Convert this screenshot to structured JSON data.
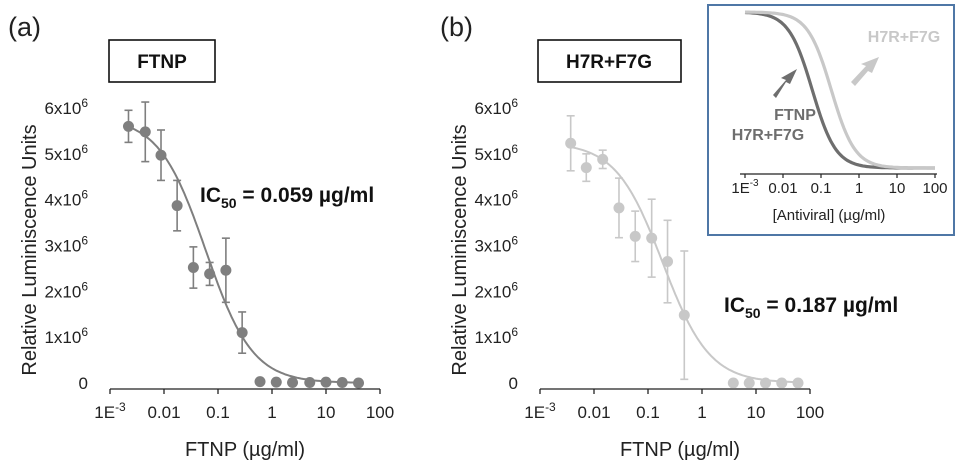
{
  "chart_data": [
    {
      "type": "scatter",
      "panel_label": "(a)",
      "box_label": "FTNP",
      "ic50_label": "IC",
      "ic50_sub": "50",
      "ic50_value": " = 0.059 µg/ml",
      "xlabel": "FTNP (µg/ml)",
      "ylabel": "Relative Luminiscence Units",
      "x_scale": "log",
      "xlim": [
        0.001,
        100
      ],
      "ylim": [
        0,
        6000000
      ],
      "x_ticks": [
        {
          "label": "1E",
          "sup": "-3"
        },
        {
          "label": "0.01",
          "sup": ""
        },
        {
          "label": "0.1",
          "sup": ""
        },
        {
          "label": "1",
          "sup": ""
        },
        {
          "label": "10",
          "sup": ""
        },
        {
          "label": "100",
          "sup": ""
        }
      ],
      "y_ticks": [
        {
          "label": "0",
          "sup": ""
        },
        {
          "label": "1x10",
          "sup": "6"
        },
        {
          "label": "2x10",
          "sup": "6"
        },
        {
          "label": "3x10",
          "sup": "6"
        },
        {
          "label": "4x10",
          "sup": "6"
        },
        {
          "label": "5x10",
          "sup": "6"
        },
        {
          "label": "6x10",
          "sup": "6"
        }
      ],
      "series": [
        {
          "color": "#7f7f7f",
          "points": [
            {
              "x": 0.0022,
              "y": 5600000,
              "err": 350000
            },
            {
              "x": 0.0045,
              "y": 5480000,
              "err": 650000
            },
            {
              "x": 0.0088,
              "y": 4970000,
              "err": 550000
            },
            {
              "x": 0.0175,
              "y": 3870000,
              "err": 550000
            },
            {
              "x": 0.035,
              "y": 2520000,
              "err": 450000
            },
            {
              "x": 0.07,
              "y": 2380000,
              "err": 250000
            },
            {
              "x": 0.14,
              "y": 2460000,
              "err": 700000
            },
            {
              "x": 0.28,
              "y": 1100000,
              "err": 450000
            },
            {
              "x": 0.6,
              "y": 30000,
              "err": 0
            },
            {
              "x": 1.2,
              "y": 20000,
              "err": 0
            },
            {
              "x": 2.4,
              "y": 10000,
              "err": 0
            },
            {
              "x": 5,
              "y": 10000,
              "err": 0
            },
            {
              "x": 10,
              "y": 20000,
              "err": 0
            },
            {
              "x": 20,
              "y": 10000,
              "err": 0
            },
            {
              "x": 40,
              "y": 0,
              "err": 0
            }
          ],
          "fit": {
            "top": 5800000,
            "bottom": 0,
            "ic50": 0.059,
            "hill": 1.0
          }
        }
      ]
    },
    {
      "type": "scatter",
      "panel_label": "(b)",
      "box_label": "H7R+F7G",
      "ic50_label": "IC",
      "ic50_sub": "50",
      "ic50_value": " = 0.187 µg/ml",
      "xlabel": "FTNP (µg/ml)",
      "ylabel": "Relative Luminiscence Units",
      "x_scale": "log",
      "xlim": [
        0.001,
        100
      ],
      "ylim": [
        0,
        6000000
      ],
      "x_ticks": [
        {
          "label": "1E",
          "sup": "-3"
        },
        {
          "label": "0.01",
          "sup": ""
        },
        {
          "label": "0.1",
          "sup": ""
        },
        {
          "label": "1",
          "sup": ""
        },
        {
          "label": "10",
          "sup": ""
        },
        {
          "label": "100",
          "sup": ""
        }
      ],
      "y_ticks": [
        {
          "label": "0",
          "sup": ""
        },
        {
          "label": "1x10",
          "sup": "6"
        },
        {
          "label": "2x10",
          "sup": "6"
        },
        {
          "label": "3x10",
          "sup": "6"
        },
        {
          "label": "4x10",
          "sup": "6"
        },
        {
          "label": "5x10",
          "sup": "6"
        },
        {
          "label": "6x10",
          "sup": "6"
        }
      ],
      "series": [
        {
          "color": "#c8c8c8",
          "points": [
            {
              "x": 0.0037,
              "y": 5230000,
              "err": 600000
            },
            {
              "x": 0.0072,
              "y": 4700000,
              "err": 300000
            },
            {
              "x": 0.0145,
              "y": 4880000,
              "err": 200000
            },
            {
              "x": 0.029,
              "y": 3820000,
              "err": 650000
            },
            {
              "x": 0.058,
              "y": 3200000,
              "err": 550000
            },
            {
              "x": 0.117,
              "y": 3160000,
              "err": 850000
            },
            {
              "x": 0.23,
              "y": 2650000,
              "err": 900000
            },
            {
              "x": 0.47,
              "y": 1480000,
              "err": 1400000
            },
            {
              "x": 3.8,
              "y": 0,
              "err": 0
            },
            {
              "x": 7.5,
              "y": 0,
              "err": 0
            },
            {
              "x": 15,
              "y": 0,
              "err": 0
            },
            {
              "x": 30,
              "y": 0,
              "err": 0
            },
            {
              "x": 60,
              "y": 0,
              "err": 0
            }
          ],
          "fit": {
            "top": 5250000,
            "bottom": 0,
            "ic50": 0.187,
            "hill": 1.0
          }
        }
      ]
    }
  ],
  "inset": {
    "xlabel": "[Antiviral] (µg/ml)",
    "x_scale": "log",
    "xlim": [
      0.001,
      100
    ],
    "x_ticks": [
      {
        "label": "1E",
        "sup": "-3"
      },
      {
        "label": "0.01",
        "sup": ""
      },
      {
        "label": "0.1",
        "sup": ""
      },
      {
        "label": "1",
        "sup": ""
      },
      {
        "label": "10",
        "sup": ""
      },
      {
        "label": "100",
        "sup": ""
      }
    ],
    "curves": [
      {
        "name": "FTNP",
        "color": "#6e6e6e",
        "ic50": 0.059
      },
      {
        "name": "H7R+F7G",
        "color": "#c8c8c8",
        "ic50": 0.187
      }
    ],
    "labels": {
      "dark_line1": "FTNP",
      "dark_line2": "H7R+F7G",
      "light": "H7R+F7G"
    },
    "border_color": "#4f77a6"
  }
}
